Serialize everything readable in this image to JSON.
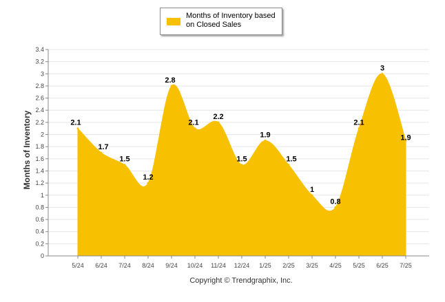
{
  "colors": {
    "area": "#F7C000",
    "grid": "#E6E6E6",
    "axis": "#888888",
    "label": "#000000",
    "tick": "#444444"
  },
  "footer": {
    "copyright": "Copyright © Trendgraphix, Inc."
  },
  "chart_data": {
    "type": "area",
    "title": "",
    "xlabel": "",
    "ylabel": "Months of Inventory",
    "categories": [
      "5/24",
      "6/24",
      "7/24",
      "8/24",
      "9/24",
      "10/24",
      "11/24",
      "12/24",
      "1/25",
      "2/25",
      "3/25",
      "4/25",
      "5/25",
      "6/25",
      "7/25"
    ],
    "series": [
      {
        "name": "Months of Inventory based on Closed Sales",
        "values": [
          2.1,
          1.7,
          1.5,
          1.2,
          2.8,
          2.1,
          2.2,
          1.5,
          1.9,
          1.5,
          1,
          0.8,
          2.1,
          3,
          1.9
        ]
      }
    ],
    "data_labels": [
      "2.1",
      "1.7",
      "1.5",
      "1.2",
      "2.8",
      "2.1",
      "2.2",
      "1.5",
      "1.9",
      "1.5",
      "1",
      "0.8",
      "2.1",
      "3",
      "1.9"
    ],
    "yticks": [
      "0",
      "0.2",
      "0.4",
      "0.6",
      "0.8",
      "1",
      "1.2",
      "1.4",
      "1.6",
      "1.8",
      "2",
      "2.2",
      "2.4",
      "2.6",
      "2.8",
      "3",
      "3.2",
      "3.4"
    ],
    "ylim": [
      0,
      3.4
    ],
    "grid": true,
    "legend_position": "top-center"
  }
}
